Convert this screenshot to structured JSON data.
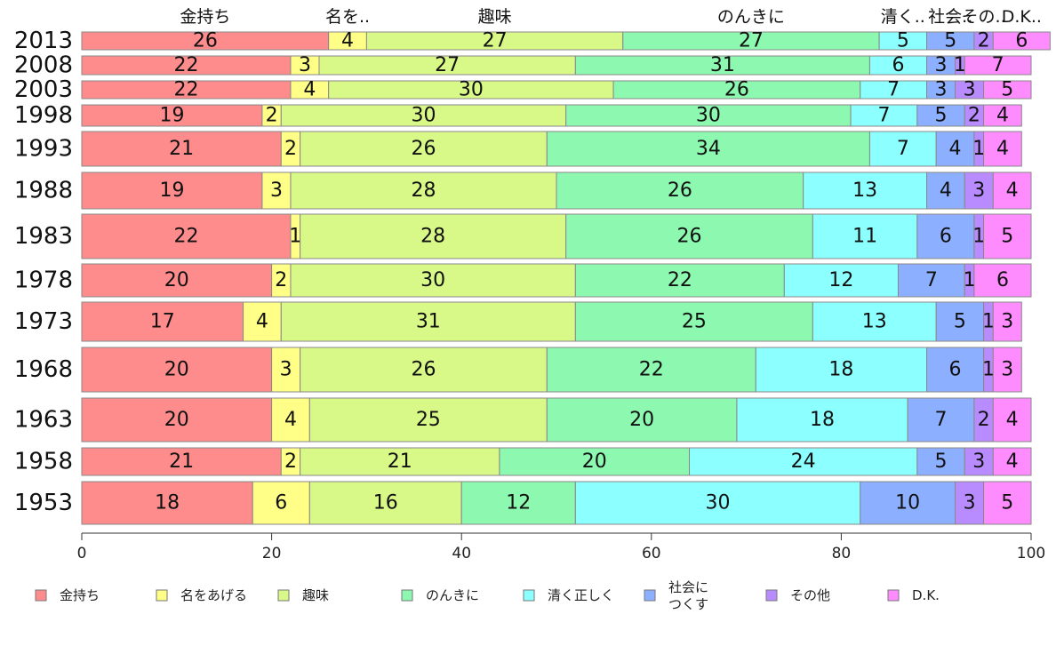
{
  "chart_data": {
    "type": "bar",
    "orientation": "horizontal",
    "stacked": true,
    "categories": [
      "2013",
      "2008",
      "2003",
      "1998",
      "1993",
      "1988",
      "1983",
      "1978",
      "1973",
      "1968",
      "1963",
      "1958",
      "1953"
    ],
    "series": [
      {
        "name": "金持ち",
        "color": "#ff8c8c",
        "values": [
          26,
          22,
          22,
          19,
          21,
          19,
          22,
          20,
          17,
          20,
          20,
          21,
          18
        ]
      },
      {
        "name": "名をあげる",
        "color": "#ffff88",
        "values": [
          4,
          3,
          4,
          2,
          2,
          3,
          1,
          2,
          4,
          3,
          4,
          2,
          6
        ]
      },
      {
        "name": "趣味",
        "color": "#d8f888",
        "values": [
          27,
          27,
          30,
          30,
          26,
          28,
          28,
          30,
          31,
          26,
          25,
          21,
          16
        ]
      },
      {
        "name": "のんきに",
        "color": "#8cf8b0",
        "values": [
          27,
          31,
          26,
          30,
          34,
          26,
          26,
          22,
          25,
          22,
          20,
          20,
          12
        ]
      },
      {
        "name": "清く正しく",
        "color": "#8cffff",
        "values": [
          5,
          6,
          7,
          7,
          7,
          13,
          11,
          12,
          13,
          18,
          18,
          24,
          30
        ]
      },
      {
        "name": "社会に\nつくす",
        "color": "#8cb0ff",
        "values": [
          5,
          3,
          3,
          5,
          4,
          4,
          6,
          7,
          5,
          6,
          7,
          5,
          10
        ]
      },
      {
        "name": "その他",
        "color": "#b88cff",
        "values": [
          2,
          1,
          3,
          2,
          1,
          3,
          1,
          1,
          1,
          1,
          2,
          3,
          3
        ]
      },
      {
        "name": "D.K.",
        "color": "#ff8cff",
        "values": [
          6,
          7,
          5,
          4,
          4,
          4,
          5,
          6,
          3,
          3,
          4,
          4,
          5
        ]
      }
    ],
    "top_labels": [
      "金持ち",
      "名を..",
      "趣味",
      "のんきに",
      "清く..",
      "社会..",
      "その..",
      "D.K.."
    ],
    "xlim": [
      0,
      100
    ],
    "xticks": [
      0,
      20,
      40,
      60,
      80,
      100
    ],
    "title": "",
    "xlabel": "",
    "ylabel": "",
    "grid": false,
    "legend": "bottom"
  }
}
